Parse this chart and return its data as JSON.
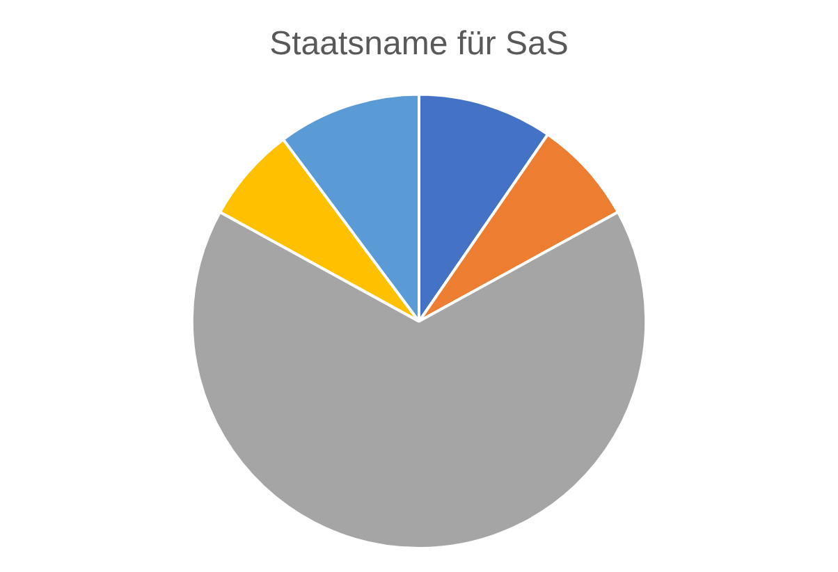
{
  "chart_data": {
    "type": "pie",
    "title": "Staatsname für SaS",
    "categories": [
      null,
      null,
      null,
      null,
      null
    ],
    "values": [
      9.6,
      7.4,
      66,
      6.8,
      10.2
    ],
    "colors": [
      "#4472c4",
      "#ed7d31",
      "#a5a5a5",
      "#ffc000",
      "#5b9bd5"
    ]
  }
}
